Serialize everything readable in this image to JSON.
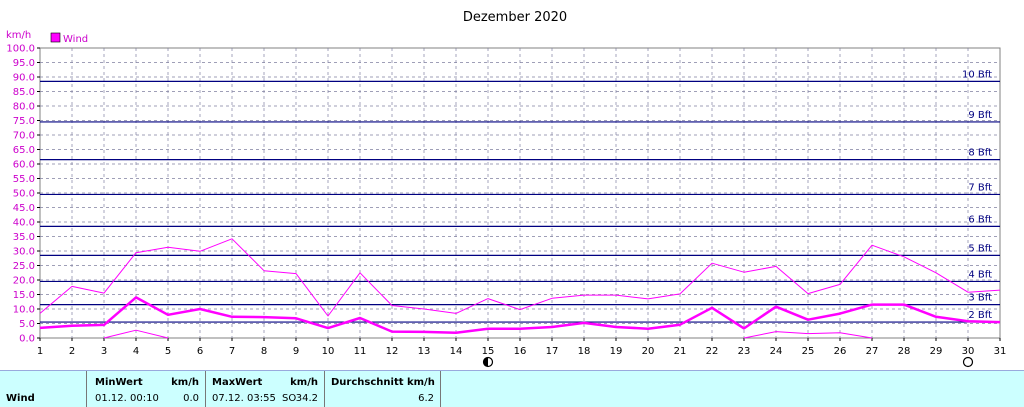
{
  "chart_data": {
    "type": "line",
    "title": "Dezember 2020",
    "unit_label": "km/h",
    "legend": [
      {
        "name": "Wind",
        "color": "#ff00ff"
      }
    ],
    "legend_placement": "top-left",
    "ylim": [
      0,
      100
    ],
    "y_ticks": [
      "0.0",
      "5.0",
      "10.0",
      "15.0",
      "20.0",
      "25.0",
      "30.0",
      "35.0",
      "40.0",
      "45.0",
      "50.0",
      "55.0",
      "60.0",
      "65.0",
      "70.0",
      "75.0",
      "80.0",
      "85.0",
      "90.0",
      "95.0",
      "100.0"
    ],
    "x": [
      1,
      2,
      3,
      4,
      5,
      6,
      7,
      8,
      9,
      10,
      11,
      12,
      13,
      14,
      15,
      16,
      17,
      18,
      19,
      20,
      21,
      22,
      23,
      24,
      25,
      26,
      27,
      28,
      29,
      30,
      31
    ],
    "x_ticks": [
      "1",
      "2",
      "3",
      "4",
      "5",
      "6",
      "7",
      "8",
      "9",
      "10",
      "11",
      "12",
      "13",
      "14",
      "15",
      "16",
      "17",
      "18",
      "19",
      "20",
      "21",
      "22",
      "23",
      "24",
      "25",
      "26",
      "27",
      "28",
      "29",
      "30",
      "31"
    ],
    "grid": true,
    "series": [
      {
        "name": "Wind",
        "role": "daily-average",
        "color": "#ff00ff",
        "values": [
          3.5,
          4.2,
          4.5,
          14,
          8,
          10,
          7.3,
          7.2,
          6.8,
          3.4,
          6.9,
          2.2,
          2.1,
          1.8,
          3.2,
          3.2,
          3.8,
          5.2,
          3.8,
          3.2,
          4.6,
          10.4,
          3.3,
          10.8,
          6.3,
          8.4,
          11.5,
          11.5,
          7.3,
          5.8,
          5.5
        ]
      },
      {
        "name": "Wind",
        "role": "daily-maximum",
        "color": "#ff00ff",
        "values": [
          8.5,
          17.8,
          15.5,
          29.4,
          31.3,
          29.9,
          34.2,
          23.2,
          22.2,
          7.6,
          22.5,
          11.2,
          10,
          8.5,
          13.6,
          9.8,
          13.7,
          14.8,
          14.8,
          13.5,
          15.2,
          25.8,
          22.7,
          24.7,
          15.3,
          18.5,
          32,
          28,
          22.5,
          15.8,
          16.5
        ]
      },
      {
        "name": "Wind",
        "role": "daily-minimum",
        "color": "#ff00ff",
        "values": [
          null,
          null,
          0,
          2.7,
          0,
          null,
          null,
          null,
          null,
          null,
          null,
          null,
          null,
          null,
          null,
          null,
          null,
          null,
          null,
          null,
          null,
          null,
          0,
          2.2,
          1.5,
          1.8,
          0,
          null,
          null,
          null,
          null
        ]
      }
    ],
    "beaufort_lines": [
      {
        "label": "2 Bft",
        "value": 5.5
      },
      {
        "label": "3 Bft",
        "value": 11.5
      },
      {
        "label": "4 Bft",
        "value": 19.5
      },
      {
        "label": "5 Bft",
        "value": 28.5
      },
      {
        "label": "6 Bft",
        "value": 38.5
      },
      {
        "label": "7 Bft",
        "value": 49.5
      },
      {
        "label": "8 Bft",
        "value": 61.5
      },
      {
        "label": "9 Bft",
        "value": 74.5
      },
      {
        "label": "10 Bft",
        "value": 88.5
      }
    ],
    "moon_phases": [
      {
        "day": 15,
        "phase": "new-moon"
      },
      {
        "day": 30,
        "phase": "full-moon"
      }
    ]
  },
  "stats": {
    "row_label": "Wind",
    "min_header": "MinWert",
    "min_unit": "km/h",
    "min_time": "01.12.  00:10",
    "min_value": "0.0",
    "max_header": "MaxWert",
    "max_unit": "km/h",
    "max_time": "07.12.  03:55",
    "max_dir": "SO",
    "max_value": "34.2",
    "avg_header": "Durchschnitt km/h",
    "avg_value": "6.2"
  }
}
